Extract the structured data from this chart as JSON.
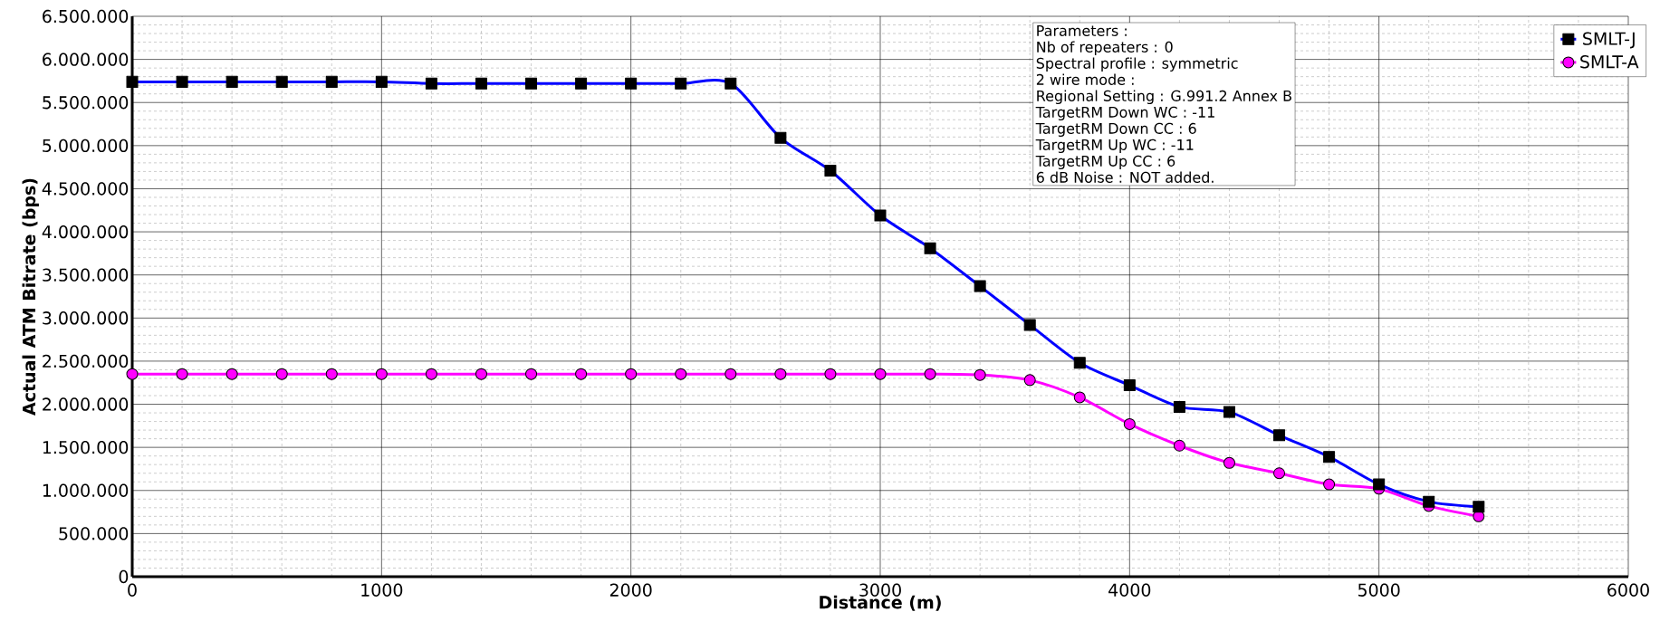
{
  "chart_data": {
    "type": "line",
    "xlabel": "Distance (m)",
    "ylabel": "Actual ATM Bitrate (bps)",
    "x": [
      0,
      200,
      400,
      600,
      800,
      1000,
      1200,
      1400,
      1600,
      1800,
      2000,
      2200,
      2400,
      2600,
      2800,
      3000,
      3200,
      3400,
      3600,
      3800,
      4000,
      4200,
      4400,
      4600,
      4800,
      5000,
      5200,
      5400
    ],
    "series": [
      {
        "name": "SMLT-J",
        "color": "#0000ff",
        "marker": "square",
        "values": [
          5740000,
          5740000,
          5740000,
          5740000,
          5740000,
          5740000,
          5720000,
          5720000,
          5720000,
          5720000,
          5720000,
          5720000,
          5720000,
          5090000,
          4710000,
          4190000,
          3810000,
          3370000,
          2920000,
          2480000,
          2220000,
          1970000,
          1910000,
          1640000,
          1390000,
          1070000,
          870000,
          810000
        ]
      },
      {
        "name": "SMLT-A",
        "color": "#ff00ff",
        "marker": "circle",
        "values": [
          2350000,
          2350000,
          2350000,
          2350000,
          2350000,
          2350000,
          2350000,
          2350000,
          2350000,
          2350000,
          2350000,
          2350000,
          2350000,
          2350000,
          2350000,
          2350000,
          2350000,
          2340000,
          2280000,
          2080000,
          1770000,
          1520000,
          1320000,
          1200000,
          1070000,
          1020000,
          820000,
          700000
        ]
      }
    ],
    "xlim": [
      0,
      6000
    ],
    "xticks": [
      0,
      1000,
      2000,
      3000,
      4000,
      5000,
      6000
    ],
    "ylim": [
      0,
      6500000
    ],
    "yticks": [
      {
        "value": 0,
        "label": "0"
      },
      {
        "value": 500000,
        "label": "500.000"
      },
      {
        "value": 1000000,
        "label": "1.000.000"
      },
      {
        "value": 1500000,
        "label": "1.500.000"
      },
      {
        "value": 2000000,
        "label": "2.000.000"
      },
      {
        "value": 2500000,
        "label": "2.500.000"
      },
      {
        "value": 3000000,
        "label": "3.000.000"
      },
      {
        "value": 3500000,
        "label": "3.500.000"
      },
      {
        "value": 4000000,
        "label": "4.000.000"
      },
      {
        "value": 4500000,
        "label": "4.500.000"
      },
      {
        "value": 5000000,
        "label": "5.000.000"
      },
      {
        "value": 5500000,
        "label": "5.500.000"
      },
      {
        "value": 6000000,
        "label": "6.000.000"
      },
      {
        "value": 6500000,
        "label": "6.500.000"
      }
    ],
    "grid": true,
    "legend": "top right",
    "line_style": "solid",
    "annotations": [
      "Parameters :",
      "Nb of repeaters : 0",
      "Spectral profile : symmetric",
      "2 wire mode :",
      "Regional Setting : G.991.2 Annex B",
      "TargetRM Down WC : -11",
      "TargetRM Down CC : 6",
      "TargetRM Up WC : -11",
      "TargetRM Up CC : 6",
      "6 dB Noise : NOT added."
    ]
  }
}
